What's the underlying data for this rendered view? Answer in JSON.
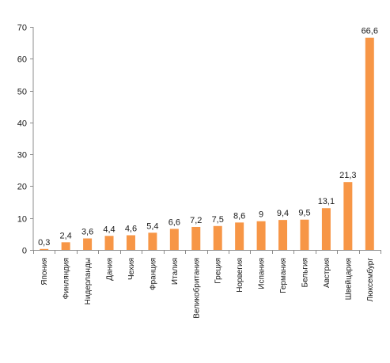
{
  "chart_data": {
    "type": "bar",
    "categories": [
      "Япония",
      "Финляндия",
      "Нидерланды",
      "Дания",
      "Чехия",
      "Франция",
      "Италия",
      "Великобритания",
      "Греция",
      "Норвегия",
      "Испания",
      "Германия",
      "Бельгия",
      "Австрия",
      "Швейцария",
      "Люксембург"
    ],
    "values": [
      0.3,
      2.4,
      3.6,
      4.4,
      4.6,
      5.4,
      6.6,
      7.2,
      7.5,
      8.6,
      9,
      9.4,
      9.5,
      13.1,
      21.3,
      66.6
    ],
    "data_labels": [
      "0,3",
      "2,4",
      "3,6",
      "4,4",
      "4,6",
      "5,4",
      "6,6",
      "7,2",
      "7,5",
      "8,6",
      "9",
      "9,4",
      "9,5",
      "13,1",
      "21,3",
      "66,6"
    ],
    "y_ticks": [
      "0",
      "10",
      "20",
      "30",
      "40",
      "50",
      "60",
      "70"
    ],
    "ylim": [
      0,
      70
    ],
    "grid": false,
    "legend": "none",
    "title": "",
    "xlabel": "",
    "ylabel": "",
    "bar_color": "#f79646",
    "axis_color": "#8c8c8c"
  }
}
